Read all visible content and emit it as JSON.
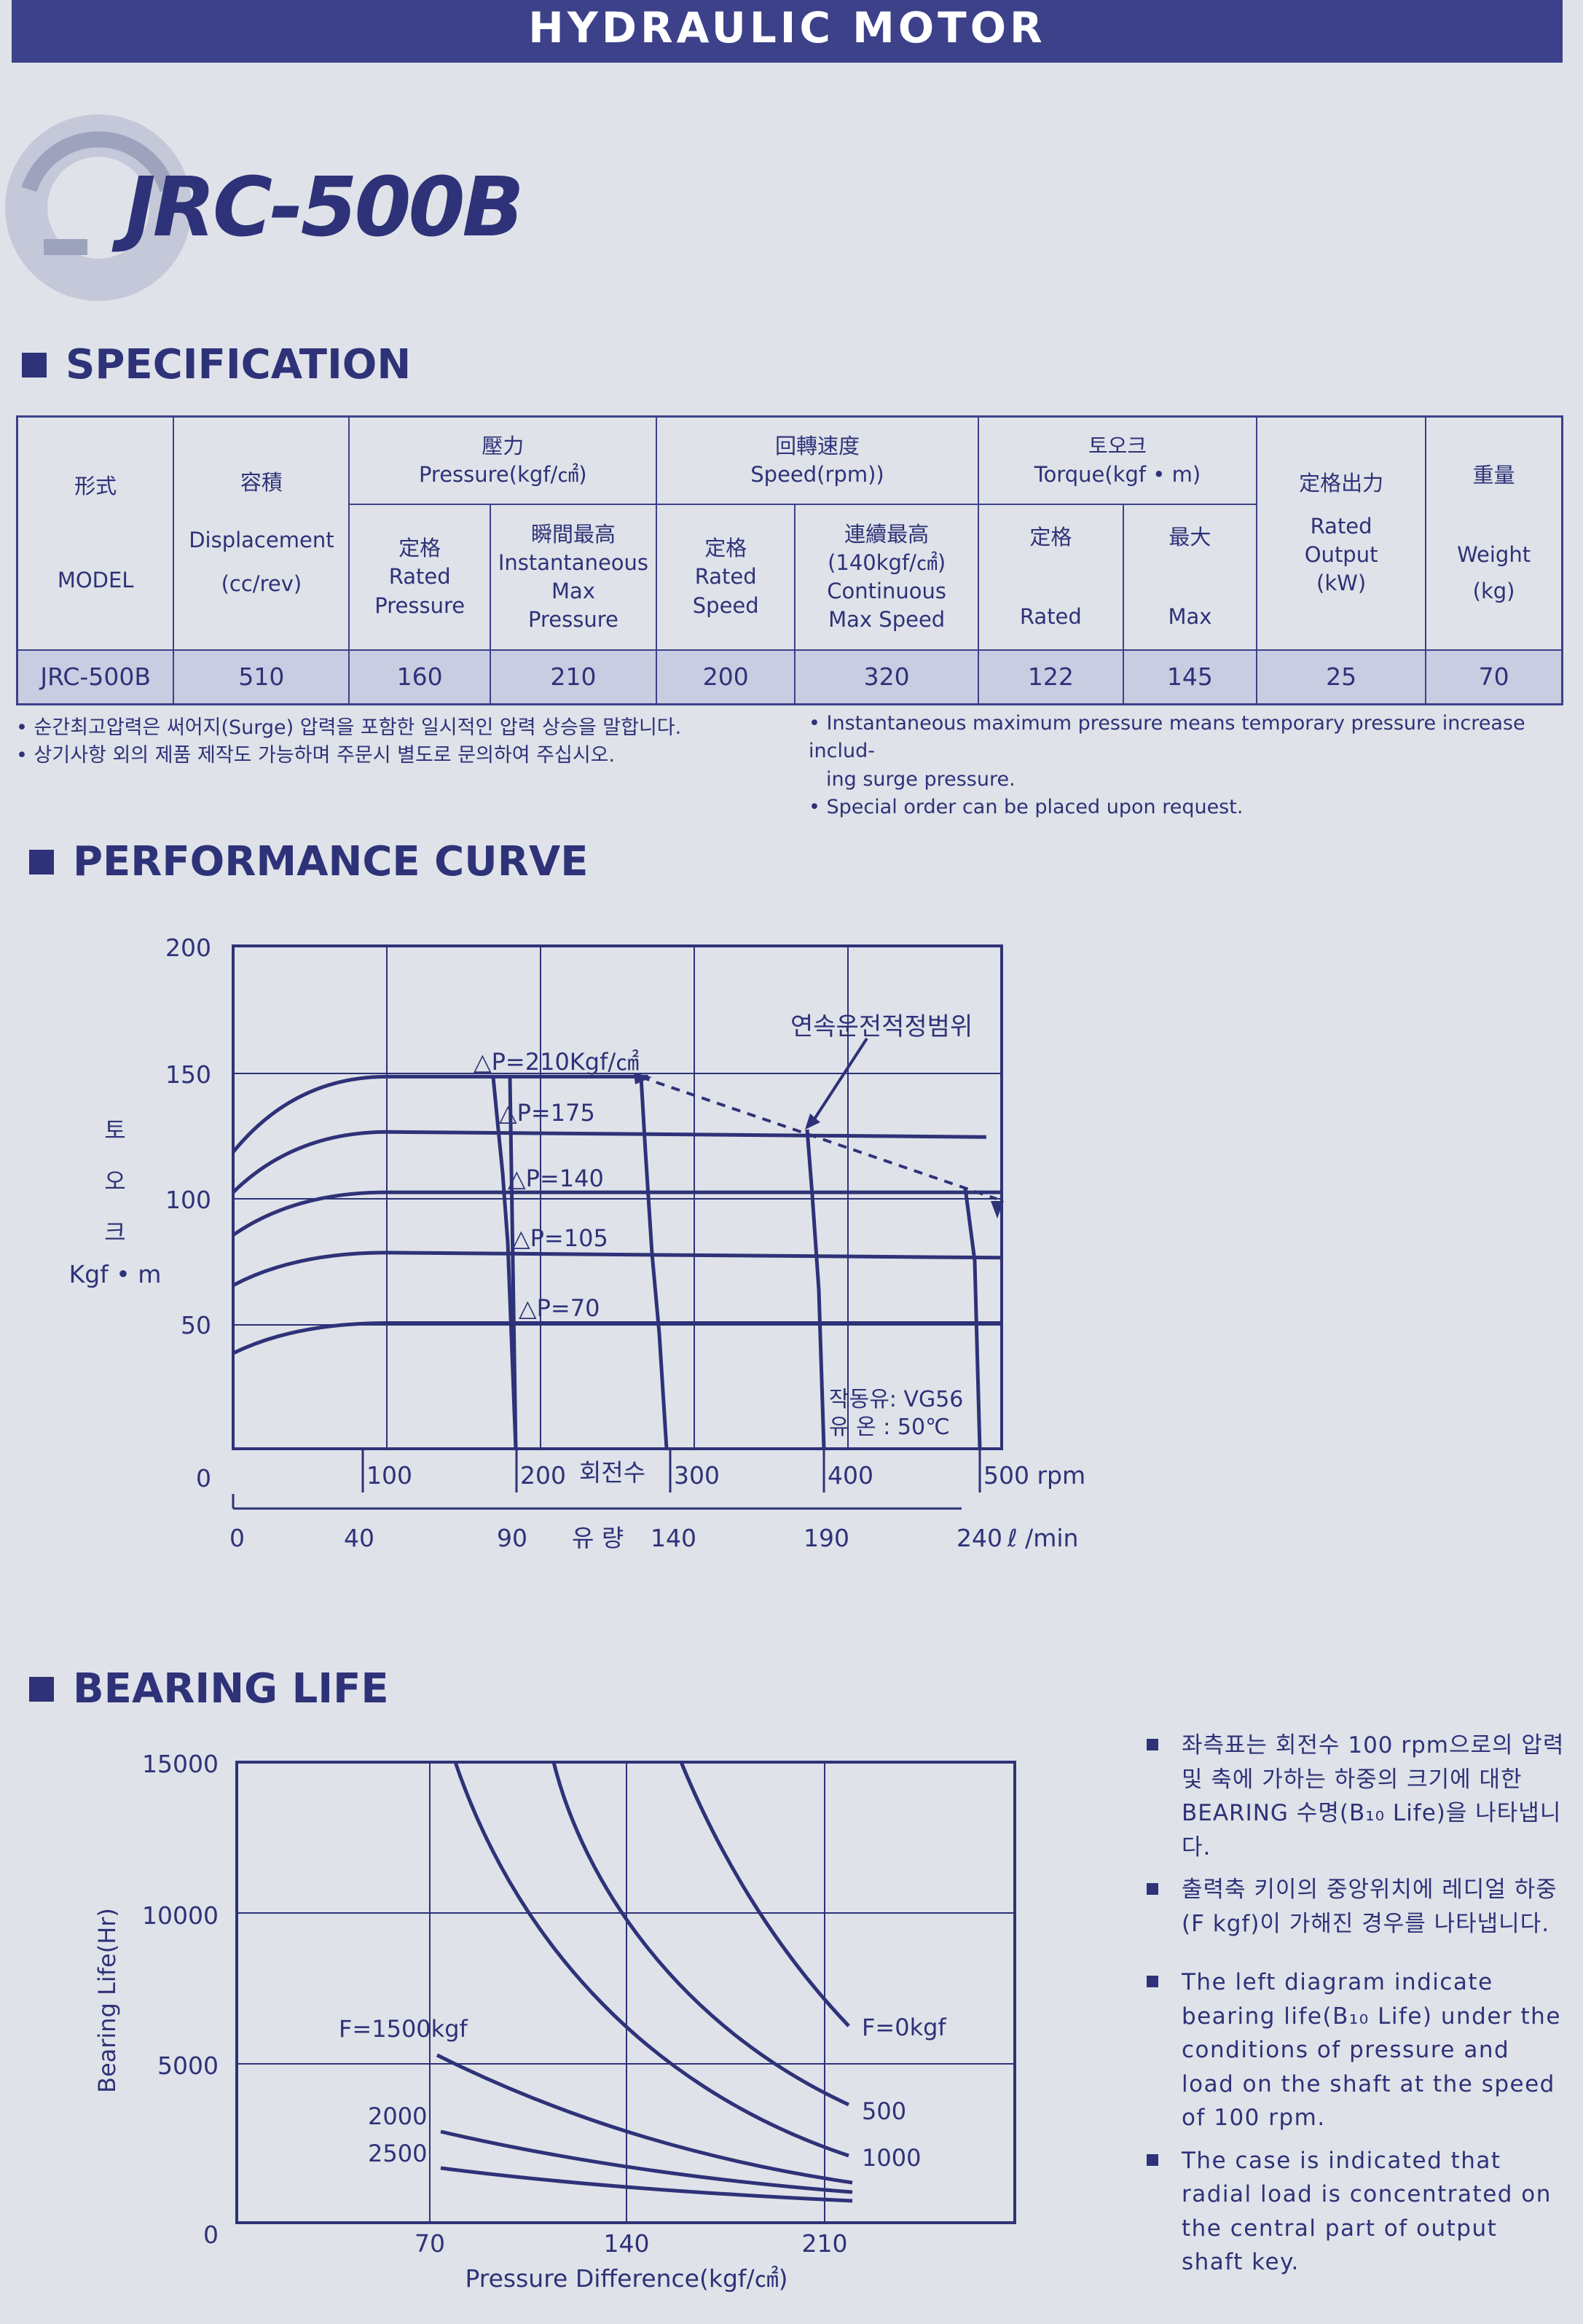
{
  "banner": "HYDRAULIC  MOTOR",
  "model_title": "JRC-500B",
  "sections": {
    "spec": "SPECIFICATION",
    "perf": "PERFORMANCE CURVE",
    "bearing": "BEARING LIFE"
  },
  "spec_table": {
    "model_kr": "形式",
    "model_en": "MODEL",
    "disp_kr": "容積",
    "disp_en": "Displacement",
    "disp_unit": "(cc/rev)",
    "pressure_kr": "壓力",
    "pressure_en": "Pressure(kgf/㎠)",
    "rated_p_kr": "定格",
    "rated_p_en1": "Rated",
    "rated_p_en2": "Pressure",
    "inst_kr": "瞬間最高",
    "inst_en1": "Instantaneous",
    "inst_en2": "Max",
    "inst_en3": "Pressure",
    "speed_kr": "回轉速度",
    "speed_en": "Speed(rpm))",
    "rated_s_kr": "定格",
    "rated_s_en1": "Rated",
    "rated_s_en2": "Speed",
    "cont_kr": "連續最高",
    "cont_en1": "(140kgf/㎠)",
    "cont_en2": "Continuous",
    "cont_en3": "Max Speed",
    "torque_kr": "토오크",
    "torque_en": "Torque(kgf • m)",
    "rated_t_kr": "定格",
    "rated_t_en": "Rated",
    "max_t_kr": "最大",
    "max_t_en": "Max",
    "output_kr": "定格出力",
    "output_en1": "Rated",
    "output_en2": "Output",
    "output_unit": "(kW)",
    "weight_kr": "重量",
    "weight_en": "Weight",
    "weight_unit": "(kg)",
    "row": {
      "model": "JRC-500B",
      "displacement": "510",
      "rated_pressure": "160",
      "inst_pressure": "210",
      "rated_speed": "200",
      "cont_speed": "320",
      "rated_torque": "122",
      "max_torque": "145",
      "output": "25",
      "weight": "70"
    }
  },
  "notes_kr": [
    "• 순간최고압력은 써어지(Surge) 압력을 포함한 일시적인 압력 상승을 말합니다.",
    "• 상기사항 외의 제품 제작도 가능하며 주문시 별도로 문의하여 주십시오."
  ],
  "notes_en": [
    "• Instantaneous maximum pressure means temporary pressure increase includ-",
    "ing surge pressure.",
    "• Special order can be placed upon request."
  ],
  "perf_chart": {
    "y_ticks": [
      "200",
      "150",
      "100",
      "50",
      "0"
    ],
    "y_label_kr": [
      "토",
      "오",
      "크"
    ],
    "y_unit": "Kgf • m",
    "rpm_ticks": [
      "100",
      "200",
      "300",
      "400",
      "500 rpm"
    ],
    "rpm_label": "회전수",
    "flow_ticks": [
      "0",
      "40",
      "90",
      "140",
      "190",
      "240"
    ],
    "flow_label": "유 량",
    "flow_unit": "ℓ /min",
    "curves": [
      "△P=210Kgf/㎠",
      "△P=175",
      "△P=140",
      "△P=105",
      "△P=70"
    ],
    "annotation": "연속운전적정범위",
    "oil": "작동유:  VG56",
    "temp": "유  온  :  50℃"
  },
  "chart_data": {
    "type": "line",
    "title": "",
    "xlabel": "회전수 (rpm)",
    "ylabel": "토오크 Kgf • m",
    "ylim": [
      0,
      200
    ],
    "xlim": [
      0,
      500
    ],
    "series": [
      {
        "name": "△P=210Kgf/㎠",
        "x": [
          0,
          40,
          100,
          270
        ],
        "y": [
          118,
          140,
          148,
          148
        ]
      },
      {
        "name": "△P=175",
        "x": [
          0,
          40,
          100,
          490
        ],
        "y": [
          102,
          120,
          126,
          124
        ]
      },
      {
        "name": "△P=140",
        "x": [
          0,
          40,
          100,
          500
        ],
        "y": [
          85,
          98,
          102,
          102
        ]
      },
      {
        "name": "△P=105",
        "x": [
          0,
          40,
          100,
          500
        ],
        "y": [
          65,
          74,
          78,
          76
        ]
      },
      {
        "name": "△P=70",
        "x": [
          0,
          40,
          100,
          500
        ],
        "y": [
          38,
          46,
          50,
          50
        ]
      }
    ],
    "grid": true
  },
  "bearing_chart": {
    "y_label": "Bearing Life(Hr)",
    "y_ticks": [
      "15000",
      "10000",
      "5000",
      "0"
    ],
    "x_ticks": [
      "70",
      "140",
      "210"
    ],
    "x_label": "Pressure Difference(kgf/㎠)",
    "labels": [
      "F=1500kgf",
      "2000",
      "2500",
      "F=0kgf",
      "500",
      "1000"
    ]
  },
  "bearing_notes": [
    "좌측표는 회전수 100 rpm으로의 압력 및 축에 가하는 하중의 크기에 대한 BEARING 수명(B₁₀ Life)을 나타냅니다.",
    "출력축 키이의 중앙위치에 레디얼 하중(F kgf)이 가해진 경우를 나타냅니다.",
    "The left diagram indicate bearing life(B₁₀ Life) under the conditions of pressure and load on the shaft at the speed of 100 rpm.",
    "The case is indicated that radial load is concentrated on the central part of output shaft key."
  ]
}
